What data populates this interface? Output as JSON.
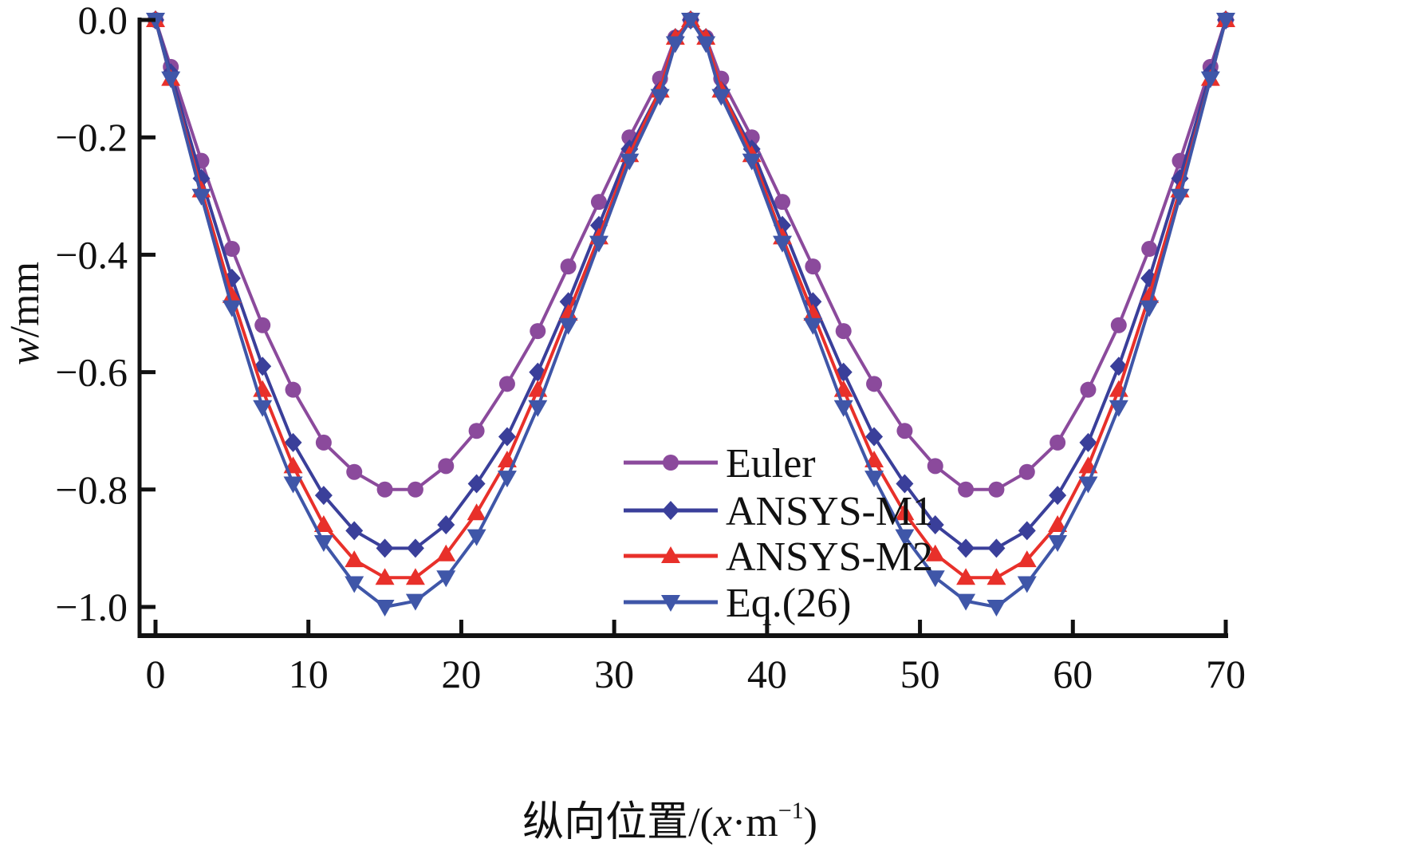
{
  "chart_data": {
    "type": "line",
    "title": "",
    "xlabel": "纵向位置/(x·m⁻¹)",
    "xlabel_parts": {
      "prefix": "纵向位置/(",
      "var": "x",
      "mid": "·m",
      "sup": "−1",
      "suffix": ")"
    },
    "ylabel": "w/mm",
    "ylabel_parts": {
      "var": "w",
      "unit": "/mm"
    },
    "xlim": [
      -1,
      70
    ],
    "ylim": [
      -1.05,
      0.0
    ],
    "xticks": [
      0,
      10,
      20,
      30,
      40,
      50,
      60,
      70
    ],
    "xtick_labels": [
      "0",
      "10",
      "20",
      "30",
      "40",
      "50",
      "60",
      "70"
    ],
    "yticks": [
      0.0,
      -0.2,
      -0.4,
      -0.6,
      -0.8,
      -1.0
    ],
    "ytick_labels": [
      "0.0",
      "−0.2",
      "−0.4",
      "−0.6",
      "−0.8",
      "−1.0"
    ],
    "grid": false,
    "legend_position": "center-bottom",
    "x": [
      0,
      1,
      3,
      5,
      7,
      9,
      11,
      13,
      15,
      17,
      19,
      21,
      23,
      25,
      27,
      29,
      31,
      33,
      34,
      35,
      36,
      37,
      39,
      41,
      43,
      45,
      47,
      49,
      51,
      53,
      55,
      57,
      59,
      61,
      63,
      65,
      67,
      69,
      70
    ],
    "series": [
      {
        "name": "Euler",
        "color": "#8B4A9C",
        "marker": "circle",
        "values": [
          0,
          -0.08,
          -0.24,
          -0.39,
          -0.52,
          -0.63,
          -0.72,
          -0.77,
          -0.8,
          -0.8,
          -0.76,
          -0.7,
          -0.62,
          -0.53,
          -0.42,
          -0.31,
          -0.2,
          -0.1,
          -0.03,
          0,
          -0.03,
          -0.1,
          -0.2,
          -0.31,
          -0.42,
          -0.53,
          -0.62,
          -0.7,
          -0.76,
          -0.8,
          -0.8,
          -0.77,
          -0.72,
          -0.63,
          -0.52,
          -0.39,
          -0.24,
          -0.08,
          0
        ]
      },
      {
        "name": "ANSYS-M1",
        "color": "#3A3F9A",
        "marker": "diamond",
        "values": [
          0,
          -0.09,
          -0.27,
          -0.44,
          -0.59,
          -0.72,
          -0.81,
          -0.87,
          -0.9,
          -0.9,
          -0.86,
          -0.79,
          -0.71,
          -0.6,
          -0.48,
          -0.35,
          -0.22,
          -0.12,
          -0.03,
          0,
          -0.03,
          -0.12,
          -0.22,
          -0.35,
          -0.48,
          -0.6,
          -0.71,
          -0.79,
          -0.86,
          -0.9,
          -0.9,
          -0.87,
          -0.81,
          -0.72,
          -0.59,
          -0.44,
          -0.27,
          -0.09,
          0
        ]
      },
      {
        "name": "ANSYS-M2",
        "color": "#E8302A",
        "marker": "triangle-up",
        "values": [
          0,
          -0.1,
          -0.29,
          -0.47,
          -0.63,
          -0.76,
          -0.86,
          -0.92,
          -0.95,
          -0.95,
          -0.91,
          -0.84,
          -0.75,
          -0.63,
          -0.5,
          -0.37,
          -0.23,
          -0.12,
          -0.03,
          0,
          -0.03,
          -0.12,
          -0.23,
          -0.37,
          -0.5,
          -0.63,
          -0.75,
          -0.84,
          -0.91,
          -0.95,
          -0.95,
          -0.92,
          -0.86,
          -0.76,
          -0.63,
          -0.47,
          -0.29,
          -0.1,
          0
        ]
      },
      {
        "name": "Eq.(26)",
        "color": "#3F56A8",
        "marker": "triangle-down",
        "values": [
          0,
          -0.1,
          -0.3,
          -0.49,
          -0.66,
          -0.79,
          -0.89,
          -0.96,
          -1.0,
          -0.99,
          -0.95,
          -0.88,
          -0.78,
          -0.66,
          -0.52,
          -0.38,
          -0.24,
          -0.13,
          -0.04,
          0,
          -0.04,
          -0.13,
          -0.24,
          -0.38,
          -0.52,
          -0.66,
          -0.78,
          -0.88,
          -0.95,
          -0.99,
          -1.0,
          -0.96,
          -0.89,
          -0.79,
          -0.66,
          -0.49,
          -0.3,
          -0.1,
          0
        ]
      }
    ]
  }
}
